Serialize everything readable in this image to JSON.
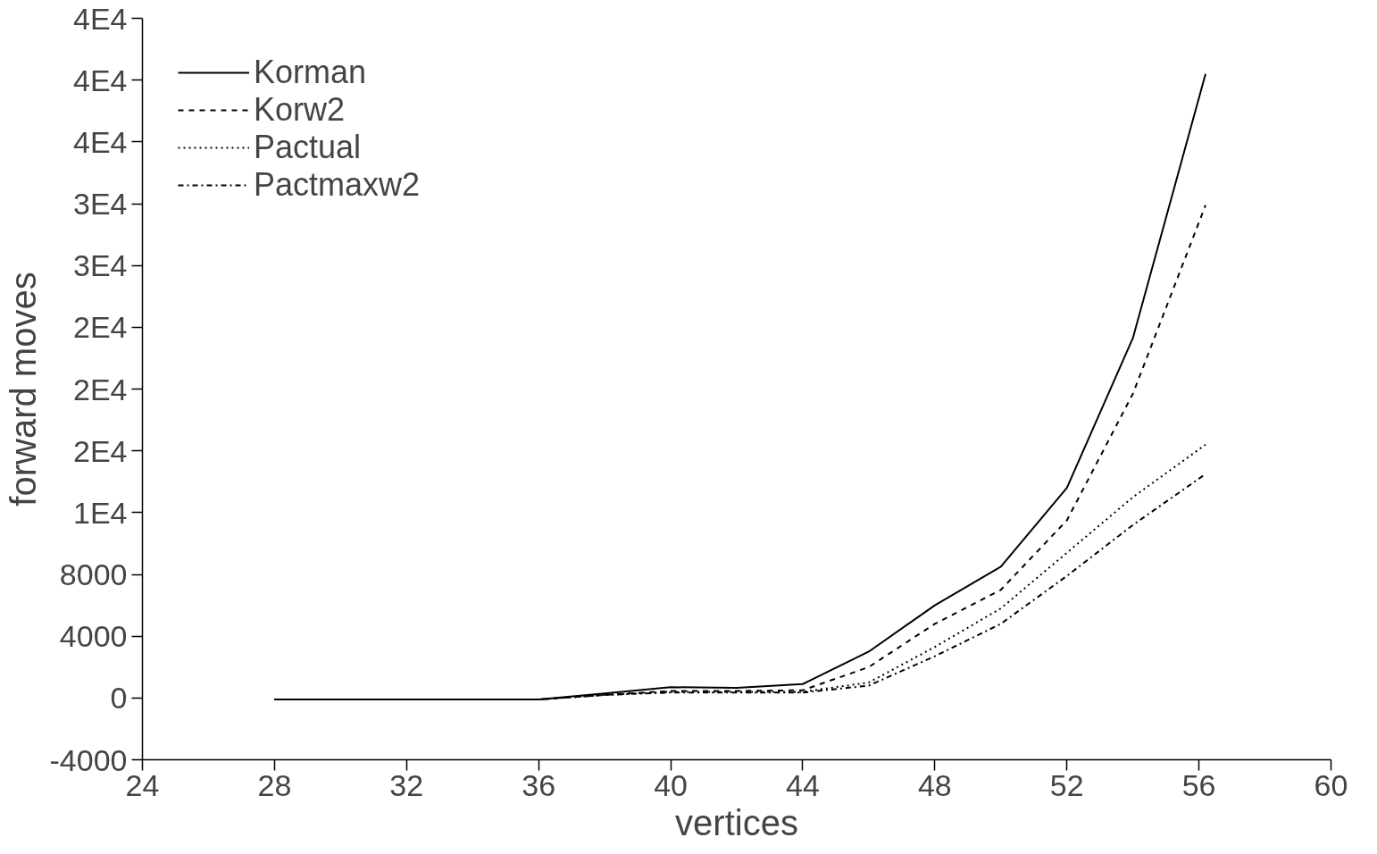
{
  "chart_data": {
    "type": "line",
    "xlabel": "vertices",
    "ylabel": "forward moves",
    "xlim": [
      24,
      60
    ],
    "xticks": [
      24,
      28,
      32,
      36,
      40,
      44,
      48,
      52,
      56,
      60
    ],
    "ylim": [
      -4000,
      44000
    ],
    "yticks": [
      -4000,
      0,
      4000,
      8000,
      {
        "value": 12000,
        "label": "1E4"
      },
      {
        "value": 16000,
        "label": "2E4"
      },
      {
        "value": 20000,
        "label": "2E4"
      },
      {
        "value": 24000,
        "label": "2E4"
      },
      {
        "value": 28000,
        "label": "3E4"
      },
      {
        "value": 32000,
        "label": "3E4"
      },
      {
        "value": 36000,
        "label": "4E4"
      },
      {
        "value": 40000,
        "label": "4E4"
      },
      {
        "value": 44000,
        "label": "4E4"
      }
    ],
    "x": [
      28,
      30,
      32,
      34,
      36,
      38,
      40,
      42,
      44,
      46,
      48,
      50,
      52,
      54,
      56.2
    ],
    "series": [
      {
        "name": "Korman",
        "color": "#000000",
        "line_style": "solid",
        "values": [
          -100,
          -100,
          -100,
          -100,
          -100,
          300,
          700,
          650,
          900,
          3000,
          6000,
          8500,
          13600,
          23300,
          40400
        ]
      },
      {
        "name": "Korw2",
        "color": "#000000",
        "line_style": "dashed",
        "values": [
          -100,
          -100,
          -100,
          -100,
          -100,
          200,
          450,
          450,
          500,
          2000,
          4800,
          7000,
          11500,
          19700,
          31900
        ]
      },
      {
        "name": "Pactual",
        "color": "#000000",
        "line_style": "dotted",
        "values": [
          -100,
          -100,
          -100,
          -100,
          -100,
          200,
          400,
          400,
          400,
          1000,
          3300,
          5800,
          9400,
          13000,
          16400
        ]
      },
      {
        "name": "Pactmaxw2",
        "color": "#000000",
        "line_style": "dashdot",
        "values": [
          -100,
          -100,
          -100,
          -100,
          -100,
          200,
          350,
          350,
          350,
          800,
          2700,
          4800,
          7900,
          11200,
          14500
        ]
      }
    ],
    "legend": "top left",
    "grid": false
  }
}
